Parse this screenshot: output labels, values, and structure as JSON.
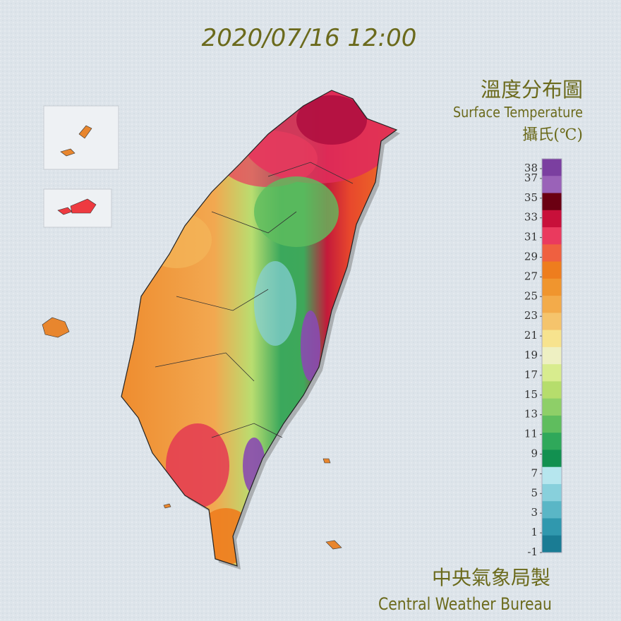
{
  "title": "2020/07/16 12:00",
  "legend": {
    "title": "溫度分布圖",
    "subtitle": "Surface Temperature",
    "unit": "攝氏(℃)",
    "ylim": [
      -1,
      39
    ],
    "ticks": [
      38,
      37,
      35,
      33,
      31,
      29,
      27,
      25,
      23,
      21,
      19,
      17,
      15,
      13,
      11,
      9,
      7,
      5,
      3,
      1,
      -1
    ],
    "colors": [
      "#7b3fa0",
      "#9a62b8",
      "#6b0012",
      "#c8103a",
      "#ea3a5e",
      "#ef6040",
      "#ee7d1e",
      "#f0952e",
      "#f3ab4a",
      "#f5c46c",
      "#f7e38e",
      "#eef0c2",
      "#d8ec8e",
      "#b6dd6c",
      "#8ecf68",
      "#5fbd5e",
      "#2fa85a",
      "#129050",
      "#b6e6ee",
      "#88d0dc",
      "#5ab6c6",
      "#3098ae",
      "#1a7c94"
    ]
  },
  "footer": {
    "name_zh": "中央氣象局製",
    "name_en": "Central Weather Bureau"
  }
}
